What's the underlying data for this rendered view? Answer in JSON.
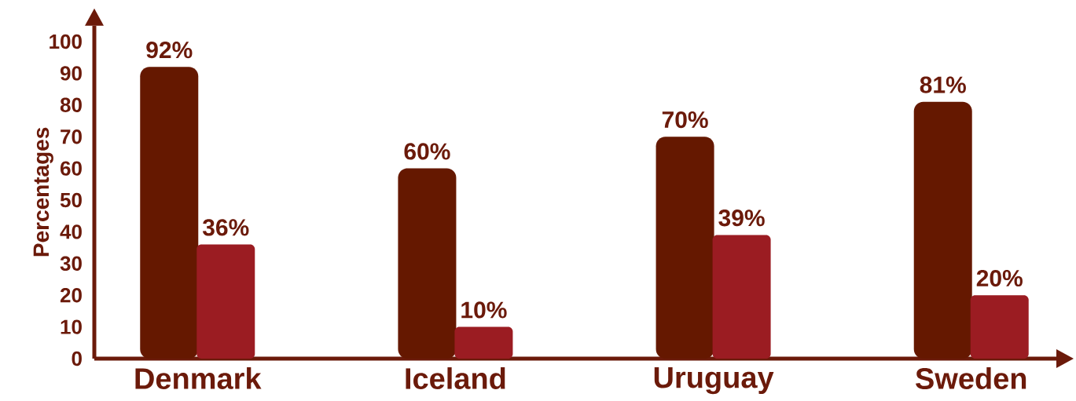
{
  "chart_data": {
    "type": "bar",
    "ylabel": "Percentages",
    "categories": [
      "Denmark",
      "Iceland",
      "Uruguay",
      "Sweden"
    ],
    "series": [
      {
        "color": "#651800",
        "values": [
          92,
          60,
          70,
          81
        ],
        "value_labels": [
          "92%",
          "60%",
          "70%",
          "81%"
        ]
      },
      {
        "color": "#9b1c22",
        "values": [
          36,
          10,
          39,
          20
        ],
        "value_labels": [
          "36%",
          "10%",
          "39%",
          "20%"
        ]
      }
    ],
    "ylim": [
      0,
      105
    ],
    "yticks": [
      0,
      10,
      20,
      30,
      40,
      50,
      60,
      70,
      80,
      90,
      100
    ],
    "grid": false
  }
}
